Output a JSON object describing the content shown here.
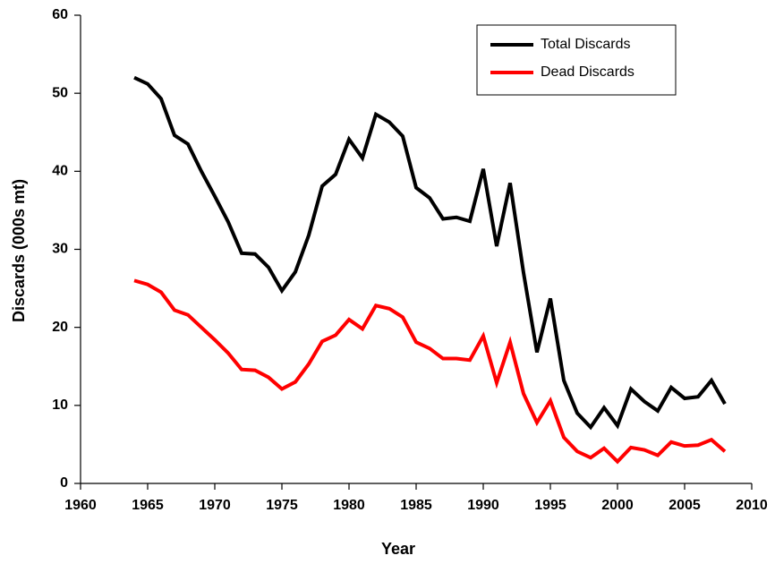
{
  "chart_data": {
    "type": "line",
    "xlabel": "Year",
    "ylabel": "Discards (000s mt)",
    "x": [
      1964,
      1965,
      1966,
      1967,
      1968,
      1969,
      1970,
      1971,
      1972,
      1973,
      1974,
      1975,
      1976,
      1977,
      1978,
      1979,
      1980,
      1981,
      1982,
      1983,
      1984,
      1985,
      1986,
      1987,
      1988,
      1989,
      1990,
      1991,
      1992,
      1993,
      1994,
      1995,
      1996,
      1997,
      1998,
      1999,
      2000,
      2001,
      2002,
      2003,
      2004,
      2005,
      2006,
      2007,
      2008
    ],
    "series": [
      {
        "name": "Total Discards",
        "color": "#000000",
        "values": [
          52.0,
          51.2,
          49.3,
          44.6,
          43.5,
          40.0,
          36.8,
          33.5,
          29.5,
          29.4,
          27.7,
          24.7,
          27.1,
          31.8,
          38.1,
          39.6,
          44.1,
          41.7,
          47.3,
          46.3,
          44.5,
          37.9,
          36.6,
          33.9,
          34.1,
          33.6,
          40.3,
          30.4,
          38.5,
          27.0,
          16.8,
          23.7,
          13.2,
          9.0,
          7.2,
          9.7,
          7.4,
          12.1,
          10.5,
          9.3,
          12.3,
          10.9,
          11.1,
          13.2,
          10.2
        ]
      },
      {
        "name": "Dead Discards",
        "color": "#ff0000",
        "values": [
          26.0,
          25.5,
          24.5,
          22.2,
          21.6,
          20.0,
          18.4,
          16.7,
          14.6,
          14.5,
          13.6,
          12.1,
          13.0,
          15.3,
          18.2,
          19.0,
          21.0,
          19.8,
          22.8,
          22.4,
          21.3,
          18.1,
          17.3,
          16.0,
          16.0,
          15.8,
          18.9,
          12.9,
          18.1,
          11.5,
          7.8,
          10.6,
          5.9,
          4.1,
          3.3,
          4.5,
          2.8,
          4.6,
          4.3,
          3.6,
          5.3,
          4.8,
          4.9,
          5.6,
          4.1
        ]
      }
    ],
    "xlim": [
      1960,
      2010
    ],
    "xticks": [
      1960,
      1965,
      1970,
      1975,
      1980,
      1985,
      1990,
      1995,
      2000,
      2005,
      2010
    ],
    "ylim": [
      0,
      60
    ],
    "yticks": [
      0,
      10,
      20,
      30,
      40,
      50,
      60
    ],
    "grid": false,
    "legend": "upper right"
  }
}
